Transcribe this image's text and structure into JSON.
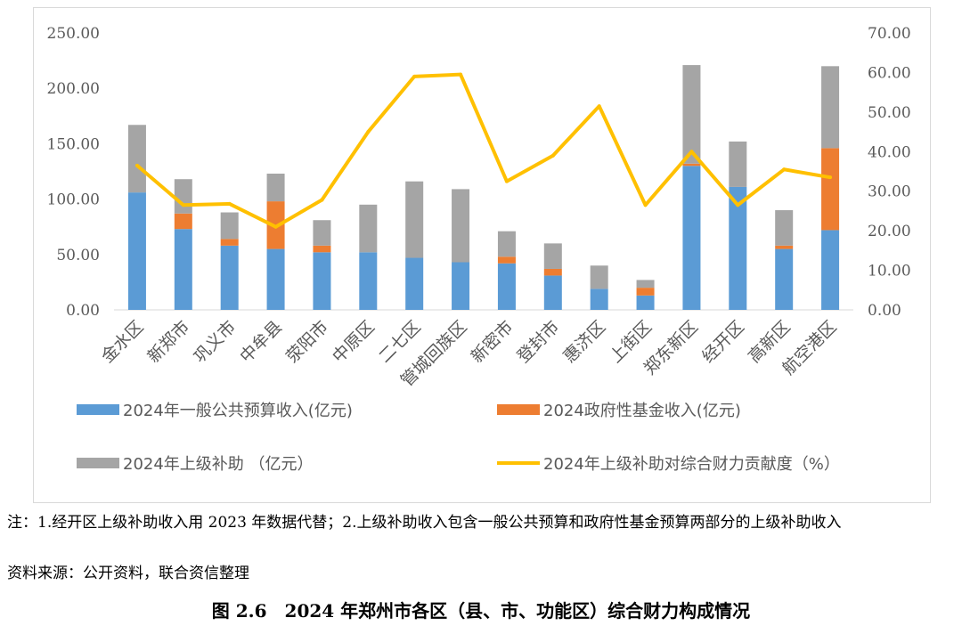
{
  "chart_data": {
    "type": "bar",
    "stacked": true,
    "categories": [
      "金水区",
      "新郑市",
      "巩义市",
      "中牟县",
      "荥阳市",
      "中原区",
      "二七区",
      "管城回族区",
      "新密市",
      "登封市",
      "惠济区",
      "上街区",
      "郑东新区",
      "经开区",
      "高新区",
      "航空港区"
    ],
    "series": [
      {
        "name": "2024年一般公共预算收入(亿元)",
        "kind": "bar",
        "axis": "left",
        "color": "#5b9bd5",
        "values": [
          106,
          73,
          58,
          55,
          52,
          52,
          47,
          43,
          42,
          31,
          19,
          13,
          130,
          111,
          55,
          72
        ]
      },
      {
        "name": "2024政府性基金收入(亿元)",
        "kind": "bar",
        "axis": "left",
        "color": "#ed7d31",
        "values": [
          0,
          14,
          6,
          43,
          6,
          0,
          0,
          0,
          6,
          6,
          0,
          7,
          2,
          0,
          3,
          74
        ]
      },
      {
        "name": "2024年上级补助 （亿元）",
        "kind": "bar",
        "axis": "left",
        "color": "#a5a5a5",
        "values": [
          61,
          31,
          24,
          25,
          23,
          43,
          69,
          66,
          23,
          23,
          21,
          7,
          89,
          41,
          32,
          74
        ]
      },
      {
        "name": "2024年上级补助对综合财力贡献度（%）",
        "kind": "line",
        "axis": "right",
        "color": "#ffc000",
        "values": [
          36.5,
          26.5,
          26.8,
          21.0,
          27.8,
          45.0,
          59.0,
          59.5,
          32.5,
          39.0,
          51.5,
          26.5,
          40.0,
          26.5,
          35.5,
          33.5
        ]
      }
    ],
    "y_left": {
      "min": 0,
      "max": 250,
      "ticks": [
        "0.00",
        "50.00",
        "100.00",
        "150.00",
        "200.00",
        "250.00"
      ]
    },
    "y_right": {
      "min": 0,
      "max": 70,
      "ticks": [
        "0.00",
        "10.00",
        "20.00",
        "30.00",
        "40.00",
        "50.00",
        "60.00",
        "70.00"
      ]
    },
    "grid": false,
    "legend_position": "bottom"
  },
  "notes": {
    "line1": "注：1.经开区上级补助收入用 2023 年数据代替；2.上级补助收入包含一般公共预算和政府性基金预算两部分的上级补助收入",
    "source": "资料来源：公开资料，联合资信整理"
  },
  "caption": "图 2.6　2024 年郑州市各区（县、市、功能区）综合财力构成情况"
}
